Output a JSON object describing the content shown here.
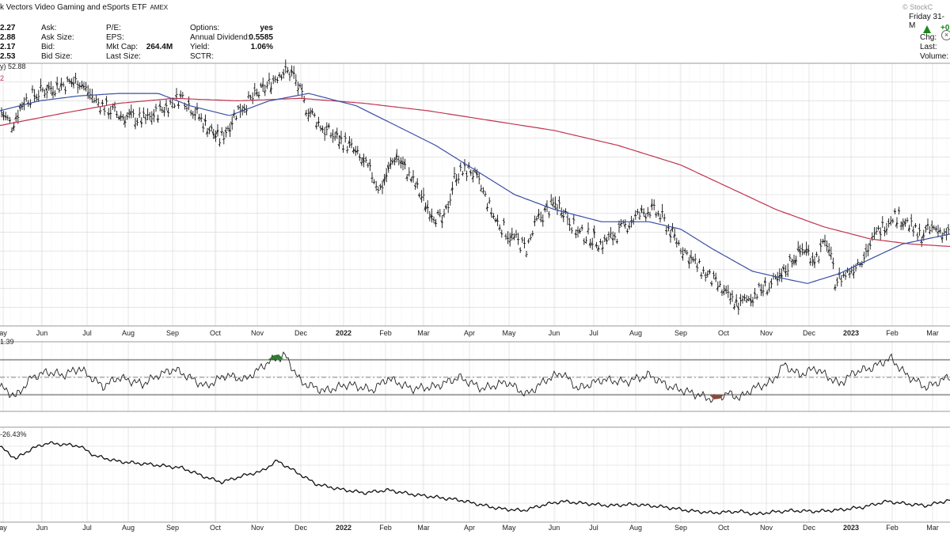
{
  "header": {
    "title": "k Vectors Video Gaming and eSports ETF",
    "exchange": "AMEX",
    "watermark": "© StockC",
    "date": "Friday 31-M",
    "change": "+0",
    "left_values": [
      "2.27",
      "2.88",
      "2.17",
      "2.53"
    ],
    "col1_labels": [
      "Ask:",
      "Ask Size:",
      "Bid:",
      "Bid Size:"
    ],
    "col2_labels": [
      "P/E:",
      "EPS:",
      "Mkt Cap:",
      "Last Size:"
    ],
    "mkt_cap": "264.4M",
    "col3_labels": [
      "Options:",
      "Annual Dividend:",
      "Yield:",
      "SCTR:"
    ],
    "options": "yes",
    "annual_dividend": "0.5585",
    "yield": "1.06%",
    "right_labels": [
      "Chg:",
      "Last:",
      "Volume:"
    ]
  },
  "colors": {
    "price_bars": "#111111",
    "ma_short": "#3a4fa3",
    "ma_long": "#c0344f",
    "grid": "#d4d4d4",
    "rsi_overbought": "#2e7d32",
    "rsi_oversold": "#8a4a3a"
  },
  "chart_data": [
    {
      "type": "ohlc",
      "panel": "price",
      "label": "y) 52.88",
      "corner_label": "2",
      "x_tick_labels": [
        "ay",
        "Jun",
        "Jul",
        "Aug",
        "Sep",
        "Oct",
        "Nov",
        "Dec",
        "2022",
        "Feb",
        "Mar",
        "Apr",
        "May",
        "Jun",
        "Jul",
        "Aug",
        "Sep",
        "Oct",
        "Nov",
        "Dec",
        "2023",
        "Feb",
        "Mar"
      ],
      "price_path_level": [
        [
          0,
          0.84
        ],
        [
          15,
          0.78
        ],
        [
          30,
          0.88
        ],
        [
          60,
          0.93
        ],
        [
          100,
          0.96
        ],
        [
          120,
          0.88
        ],
        [
          150,
          0.82
        ],
        [
          185,
          0.8
        ],
        [
          230,
          0.9
        ],
        [
          260,
          0.78
        ],
        [
          278,
          0.72
        ],
        [
          300,
          0.84
        ],
        [
          320,
          0.89
        ],
        [
          335,
          0.93
        ],
        [
          355,
          1.0
        ],
        [
          370,
          0.99
        ],
        [
          385,
          0.86
        ],
        [
          410,
          0.76
        ],
        [
          440,
          0.7
        ],
        [
          470,
          0.58
        ],
        [
          480,
          0.52
        ],
        [
          500,
          0.66
        ],
        [
          520,
          0.56
        ],
        [
          540,
          0.45
        ],
        [
          560,
          0.38
        ],
        [
          575,
          0.58
        ],
        [
          595,
          0.6
        ],
        [
          610,
          0.51
        ],
        [
          625,
          0.4
        ],
        [
          645,
          0.33
        ],
        [
          665,
          0.28
        ],
        [
          680,
          0.4
        ],
        [
          700,
          0.46
        ],
        [
          710,
          0.45
        ],
        [
          730,
          0.34
        ],
        [
          745,
          0.33
        ],
        [
          760,
          0.3
        ],
        [
          780,
          0.34
        ],
        [
          800,
          0.4
        ],
        [
          820,
          0.44
        ],
        [
          835,
          0.41
        ],
        [
          855,
          0.31
        ],
        [
          880,
          0.21
        ],
        [
          900,
          0.15
        ],
        [
          920,
          0.08
        ],
        [
          935,
          0.05
        ],
        [
          950,
          0.09
        ],
        [
          965,
          0.12
        ],
        [
          985,
          0.15
        ],
        [
          1000,
          0.24
        ],
        [
          1015,
          0.28
        ],
        [
          1030,
          0.24
        ],
        [
          1045,
          0.31
        ],
        [
          1055,
          0.15
        ],
        [
          1070,
          0.18
        ],
        [
          1090,
          0.25
        ],
        [
          1110,
          0.35
        ],
        [
          1128,
          0.42
        ],
        [
          1145,
          0.39
        ],
        [
          1160,
          0.33
        ],
        [
          1180,
          0.36
        ],
        [
          1200,
          0.34
        ]
      ],
      "ma_short_level": [
        [
          0,
          0.84
        ],
        [
          50,
          0.88
        ],
        [
          100,
          0.9
        ],
        [
          150,
          0.91
        ],
        [
          200,
          0.91
        ],
        [
          240,
          0.86
        ],
        [
          290,
          0.82
        ],
        [
          340,
          0.88
        ],
        [
          390,
          0.91
        ],
        [
          450,
          0.86
        ],
        [
          500,
          0.78
        ],
        [
          550,
          0.7
        ],
        [
          600,
          0.6
        ],
        [
          650,
          0.5
        ],
        [
          700,
          0.44
        ],
        [
          760,
          0.39
        ],
        [
          820,
          0.39
        ],
        [
          860,
          0.36
        ],
        [
          900,
          0.28
        ],
        [
          950,
          0.19
        ],
        [
          990,
          0.16
        ],
        [
          1020,
          0.14
        ],
        [
          1060,
          0.18
        ],
        [
          1100,
          0.24
        ],
        [
          1140,
          0.3
        ],
        [
          1200,
          0.34
        ]
      ],
      "ma_long_level": [
        [
          0,
          0.78
        ],
        [
          80,
          0.83
        ],
        [
          150,
          0.87
        ],
        [
          220,
          0.89
        ],
        [
          300,
          0.88
        ],
        [
          380,
          0.89
        ],
        [
          460,
          0.87
        ],
        [
          540,
          0.84
        ],
        [
          620,
          0.8
        ],
        [
          700,
          0.76
        ],
        [
          780,
          0.7
        ],
        [
          860,
          0.62
        ],
        [
          920,
          0.53
        ],
        [
          980,
          0.44
        ],
        [
          1040,
          0.37
        ],
        [
          1100,
          0.32
        ],
        [
          1150,
          0.3
        ],
        [
          1200,
          0.29
        ]
      ]
    },
    {
      "type": "line",
      "panel": "rsi",
      "label": "1.39",
      "series_level": [
        [
          0,
          0.3
        ],
        [
          20,
          0.08
        ],
        [
          40,
          0.5
        ],
        [
          60,
          0.62
        ],
        [
          80,
          0.55
        ],
        [
          100,
          0.7
        ],
        [
          130,
          0.3
        ],
        [
          150,
          0.5
        ],
        [
          180,
          0.35
        ],
        [
          200,
          0.55
        ],
        [
          220,
          0.68
        ],
        [
          260,
          0.3
        ],
        [
          285,
          0.55
        ],
        [
          310,
          0.45
        ],
        [
          340,
          0.85
        ],
        [
          360,
          0.98
        ],
        [
          380,
          0.4
        ],
        [
          410,
          0.2
        ],
        [
          440,
          0.35
        ],
        [
          470,
          0.22
        ],
        [
          490,
          0.48
        ],
        [
          520,
          0.25
        ],
        [
          550,
          0.3
        ],
        [
          580,
          0.5
        ],
        [
          610,
          0.25
        ],
        [
          640,
          0.4
        ],
        [
          665,
          0.12
        ],
        [
          690,
          0.45
        ],
        [
          710,
          0.6
        ],
        [
          730,
          0.25
        ],
        [
          760,
          0.45
        ],
        [
          790,
          0.4
        ],
        [
          820,
          0.55
        ],
        [
          845,
          0.3
        ],
        [
          870,
          0.18
        ],
        [
          900,
          0.02
        ],
        [
          920,
          0.15
        ],
        [
          935,
          0.05
        ],
        [
          950,
          0.25
        ],
        [
          975,
          0.4
        ],
        [
          990,
          0.78
        ],
        [
          1010,
          0.55
        ],
        [
          1030,
          0.7
        ],
        [
          1060,
          0.35
        ],
        [
          1080,
          0.62
        ],
        [
          1100,
          0.7
        ],
        [
          1125,
          0.92
        ],
        [
          1145,
          0.55
        ],
        [
          1170,
          0.28
        ],
        [
          1200,
          0.52
        ]
      ]
    },
    {
      "type": "line",
      "panel": "relative",
      "label": "-26.43%",
      "series_level": [
        [
          0,
          0.95
        ],
        [
          20,
          0.78
        ],
        [
          40,
          0.92
        ],
        [
          60,
          1.0
        ],
        [
          100,
          0.96
        ],
        [
          120,
          0.82
        ],
        [
          150,
          0.74
        ],
        [
          190,
          0.7
        ],
        [
          230,
          0.65
        ],
        [
          260,
          0.52
        ],
        [
          280,
          0.45
        ],
        [
          310,
          0.55
        ],
        [
          330,
          0.6
        ],
        [
          350,
          0.75
        ],
        [
          370,
          0.62
        ],
        [
          400,
          0.42
        ],
        [
          430,
          0.35
        ],
        [
          460,
          0.3
        ],
        [
          490,
          0.34
        ],
        [
          520,
          0.28
        ],
        [
          550,
          0.24
        ],
        [
          580,
          0.2
        ],
        [
          600,
          0.15
        ],
        [
          630,
          0.08
        ],
        [
          660,
          0.05
        ],
        [
          690,
          0.14
        ],
        [
          710,
          0.18
        ],
        [
          740,
          0.15
        ],
        [
          770,
          0.12
        ],
        [
          800,
          0.14
        ],
        [
          840,
          0.1
        ],
        [
          870,
          0.05
        ],
        [
          900,
          0.02
        ],
        [
          935,
          0.04
        ],
        [
          955,
          0.0
        ],
        [
          975,
          0.03
        ],
        [
          1000,
          0.05
        ],
        [
          1030,
          0.04
        ],
        [
          1060,
          0.06
        ],
        [
          1090,
          0.1
        ],
        [
          1120,
          0.18
        ],
        [
          1150,
          0.14
        ],
        [
          1170,
          0.12
        ],
        [
          1200,
          0.2
        ]
      ]
    }
  ]
}
